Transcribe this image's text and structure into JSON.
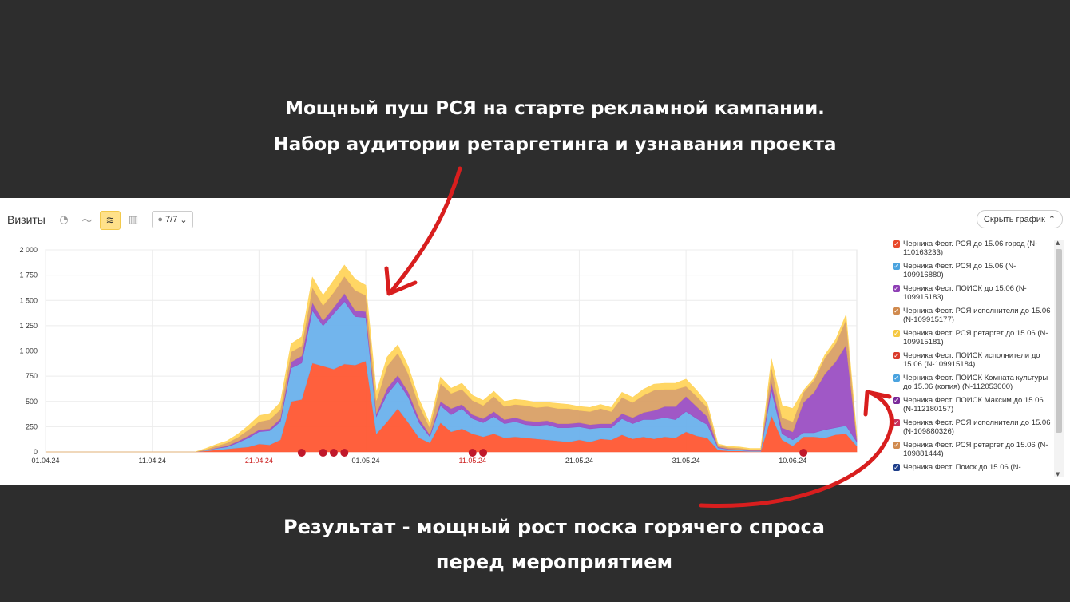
{
  "top_caption": {
    "line1": "Мощный пуш РСЯ на старте рекламной кампании.",
    "line2": "Набор аудитории ретаргетинга и узнавания проекта"
  },
  "bottom_caption": {
    "line1": "Результат - мощный рост поска горячего спроса",
    "line2": "перед мероприятием"
  },
  "toolbar": {
    "title": "Визиты",
    "pie_icon": "pie-chart-icon",
    "line_icon": "line-chart-icon",
    "area_icon": "stacked-area-icon",
    "bar_icon": "bar-chart-icon",
    "notes_label": "7/7",
    "hide_label": "Скрыть график"
  },
  "colors": {
    "red": "#ff5733",
    "blue": "#6ab1ec",
    "purple": "#9b4fc3",
    "tan": "#d9a066",
    "yellow": "#ffd45c",
    "annotation": "#d81e1e"
  },
  "legend": [
    {
      "label": "Черника Фест. РСЯ до 15.06 город (N-110163233)",
      "color": "#e8492b"
    },
    {
      "label": "Черника Фест. РСЯ до 15.06 (N-109916880)",
      "color": "#4aa3df"
    },
    {
      "label": "Черника Фест. ПОИСК до 15.06 (N-109915183)",
      "color": "#8e3fb5"
    },
    {
      "label": "Черника Фест. РСЯ исполнители до 15.06 (N-109915177)",
      "color": "#d08a4e"
    },
    {
      "label": "Черника Фест. РСЯ ретаргет до 15.06 (N-109915181)",
      "color": "#f5c842"
    },
    {
      "label": "Черника Фест. ПОИСК исполнители до 15.06 (N-109915184)",
      "color": "#d93a2a"
    },
    {
      "label": "Черника Фест. ПОИСК Комната культуры до 15.06 (копия) (N-112053000)",
      "color": "#4aa3df"
    },
    {
      "label": "Черника Фест. ПОИСК Максим до 15.06 (N-112180157)",
      "color": "#7a2a9a"
    },
    {
      "label": "Черника Фест. РСЯ исполнители до 15.06 (N-109880326)",
      "color": "#c92f5a"
    },
    {
      "label": "Черника Фест. РСЯ ретаргет до 15.06 (N-109881444)",
      "color": "#d08a4e"
    },
    {
      "label": "Черника Фест. Поиск до 15.06 (N-",
      "color": "#1f3f8a"
    }
  ],
  "chart_data": {
    "type": "area",
    "title": "Визиты",
    "stacked": true,
    "ylim": [
      0,
      2000
    ],
    "yticks": [
      "0",
      "250",
      "500",
      "750",
      "1 000",
      "1 250",
      "1 500",
      "1 750",
      "2 000"
    ],
    "xticks": [
      {
        "label": "01.04.24",
        "day": 0,
        "weekend": false
      },
      {
        "label": "11.04.24",
        "day": 10,
        "weekend": false
      },
      {
        "label": "21.04.24",
        "day": 20,
        "weekend": true
      },
      {
        "label": "01.05.24",
        "day": 30,
        "weekend": false
      },
      {
        "label": "11.05.24",
        "day": 40,
        "weekend": true
      },
      {
        "label": "21.05.24",
        "day": 50,
        "weekend": false
      },
      {
        "label": "31.05.24",
        "day": 60,
        "weekend": false
      },
      {
        "label": "10.06.24",
        "day": 70,
        "weekend": false
      }
    ],
    "x_range_days": [
      0,
      76
    ],
    "x": [
      0,
      10,
      14,
      15,
      16,
      17,
      18,
      19,
      20,
      21,
      22,
      23,
      24,
      25,
      26,
      27,
      28,
      29,
      30,
      31,
      32,
      33,
      34,
      35,
      36,
      37,
      38,
      39,
      40,
      41,
      42,
      43,
      44,
      45,
      46,
      47,
      48,
      49,
      50,
      51,
      52,
      53,
      54,
      55,
      56,
      57,
      58,
      59,
      60,
      61,
      62,
      63,
      64,
      65,
      66,
      67,
      68,
      69,
      70,
      71,
      72,
      73,
      74,
      75,
      76
    ],
    "series": [
      {
        "name": "Черника Фест. РСЯ до 15.06 город (N-110163233)",
        "color": "#ff5733",
        "values": [
          0,
          0,
          0,
          10,
          20,
          30,
          40,
          50,
          80,
          70,
          120,
          500,
          520,
          880,
          850,
          820,
          870,
          860,
          900,
          180,
          300,
          430,
          290,
          140,
          90,
          290,
          200,
          230,
          180,
          150,
          180,
          140,
          150,
          140,
          130,
          120,
          110,
          100,
          120,
          100,
          130,
          120,
          170,
          130,
          150,
          130,
          150,
          140,
          200,
          160,
          140,
          20,
          10,
          10,
          5,
          5,
          360,
          120,
          60,
          150,
          150,
          140,
          170,
          180,
          60
        ]
      },
      {
        "name": "Черника Фест. РСЯ до 15.06 (N-109916880)",
        "color": "#6ab1ec",
        "values": [
          0,
          0,
          0,
          5,
          15,
          20,
          50,
          90,
          120,
          140,
          180,
          330,
          360,
          520,
          400,
          550,
          620,
          480,
          430,
          170,
          270,
          270,
          250,
          150,
          60,
          170,
          170,
          200,
          150,
          140,
          170,
          140,
          150,
          130,
          130,
          150,
          130,
          140,
          130,
          130,
          110,
          120,
          160,
          150,
          170,
          190,
          190,
          180,
          200,
          170,
          130,
          20,
          15,
          10,
          5,
          5,
          250,
          60,
          60,
          40,
          40,
          80,
          70,
          80,
          40
        ]
      },
      {
        "name": "Черника Фест. ПОИСК до 15.06 (N-109915183)",
        "color": "#9b4fc3",
        "values": [
          0,
          0,
          0,
          0,
          5,
          10,
          15,
          20,
          20,
          20,
          30,
          60,
          70,
          80,
          50,
          60,
          80,
          60,
          60,
          30,
          60,
          60,
          50,
          40,
          20,
          40,
          60,
          40,
          40,
          40,
          50,
          40,
          40,
          40,
          40,
          40,
          40,
          40,
          40,
          40,
          40,
          40,
          50,
          60,
          70,
          90,
          110,
          130,
          150,
          120,
          80,
          10,
          5,
          5,
          5,
          5,
          80,
          60,
          80,
          300,
          400,
          550,
          650,
          800,
          20
        ]
      },
      {
        "name": "Черника Фест. РСЯ исполнители до 15.06 (N-109915177)",
        "color": "#d9a066",
        "values": [
          0,
          0,
          0,
          10,
          20,
          30,
          40,
          60,
          80,
          90,
          90,
          100,
          100,
          150,
          150,
          150,
          170,
          200,
          160,
          130,
          220,
          220,
          180,
          130,
          70,
          180,
          150,
          150,
          140,
          130,
          150,
          130,
          130,
          150,
          140,
          140,
          150,
          150,
          120,
          130,
          150,
          120,
          160,
          150,
          170,
          200,
          170,
          170,
          100,
          100,
          90,
          20,
          15,
          15,
          10,
          10,
          150,
          100,
          100,
          100,
          120,
          160,
          180,
          250,
          40
        ]
      },
      {
        "name": "Черника Фест. РСЯ ретаргет до 15.06 (N-109915181)",
        "color": "#ffd45c",
        "values": [
          0,
          0,
          0,
          10,
          15,
          20,
          30,
          40,
          60,
          60,
          70,
          80,
          90,
          100,
          100,
          120,
          110,
          110,
          100,
          80,
          90,
          80,
          70,
          60,
          40,
          60,
          50,
          60,
          50,
          50,
          50,
          50,
          50,
          50,
          50,
          40,
          50,
          40,
          40,
          40,
          40,
          40,
          50,
          50,
          60,
          60,
          60,
          60,
          70,
          60,
          40,
          10,
          10,
          10,
          10,
          10,
          80,
          120,
          130,
          20,
          20,
          30,
          40,
          50,
          10
        ]
      }
    ]
  },
  "event_markers_days": [
    24,
    26,
    27,
    28,
    40,
    41,
    71
  ]
}
